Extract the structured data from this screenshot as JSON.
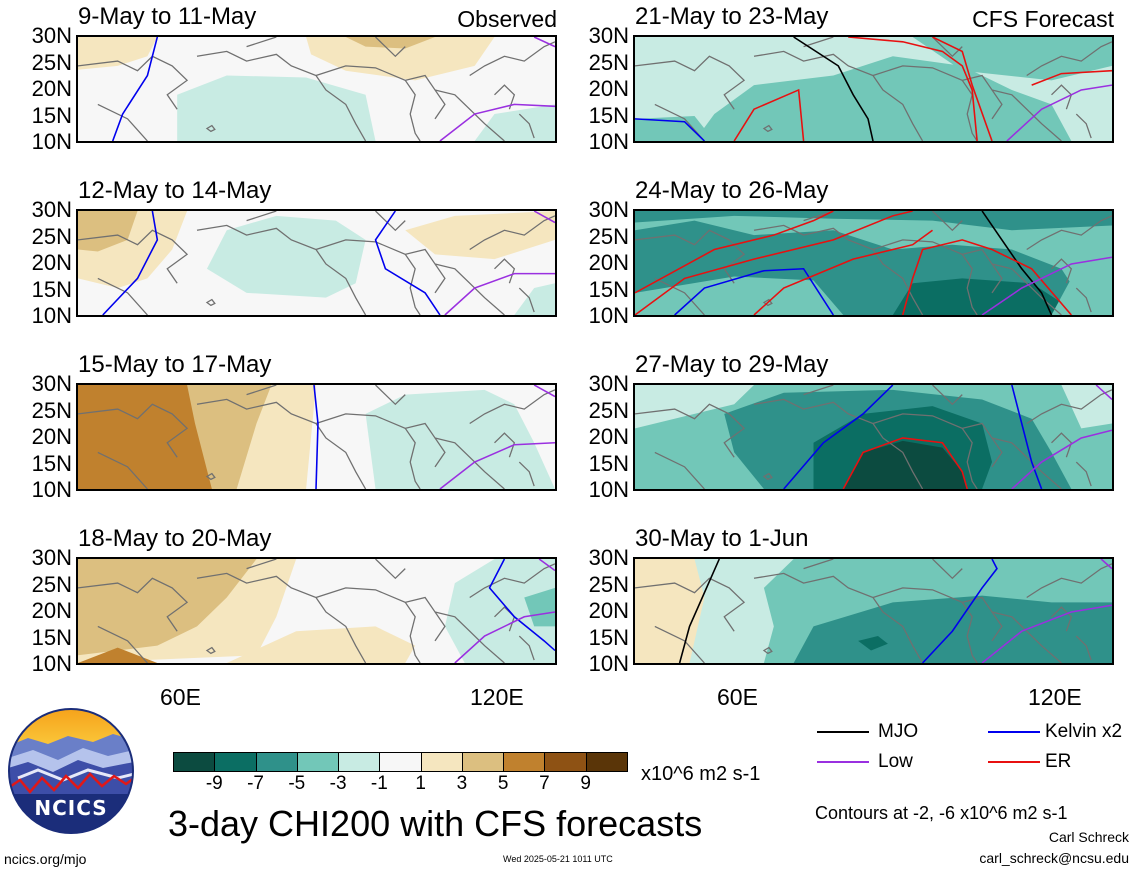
{
  "left_column_tag": "Observed",
  "right_column_tag": "CFS Forecast",
  "lat_labels": [
    "30N",
    "25N",
    "20N",
    "15N",
    "10N"
  ],
  "lon_labels": [
    "60E",
    "120E"
  ],
  "panels": [
    {
      "title": "9-May to 11-May"
    },
    {
      "title": "12-May to 14-May"
    },
    {
      "title": "15-May to 17-May"
    },
    {
      "title": "18-May to 20-May"
    },
    {
      "title": "21-May to 23-May"
    },
    {
      "title": "24-May to 26-May"
    },
    {
      "title": "27-May to 29-May"
    },
    {
      "title": "30-May to 1-Jun"
    }
  ],
  "colorbar": {
    "ticks": [
      "-9",
      "-7",
      "-5",
      "-3",
      "-1",
      "1",
      "3",
      "5",
      "7",
      "9"
    ],
    "colors": [
      "#0c4b40",
      "#0b6e63",
      "#2f918a",
      "#72c7b8",
      "#c8ebe3",
      "#f7f7f7",
      "#f5e6bf",
      "#dcbf80",
      "#c0812e",
      "#8e5214",
      "#5a3508"
    ],
    "units": "x10^6 m2 s-1"
  },
  "legend": {
    "items": [
      {
        "label": "MJO",
        "color": "#000000"
      },
      {
        "label": "Kelvin x2",
        "color": "#0000ee"
      },
      {
        "label": "Low",
        "color": "#9a30e0"
      },
      {
        "label": "ER",
        "color": "#e81010"
      }
    ],
    "contours_note": "Contours at -2, -6 x10^6 m2 s-1"
  },
  "main_title": "3-day CHI200 with CFS forecasts",
  "logo_text": "NCICS",
  "url": "ncics.org/mjo",
  "timestamp": "Wed 2025-05-21 1011 UTC",
  "author": "Carl Schreck",
  "email": "carl_schreck@ncsu.edu"
}
